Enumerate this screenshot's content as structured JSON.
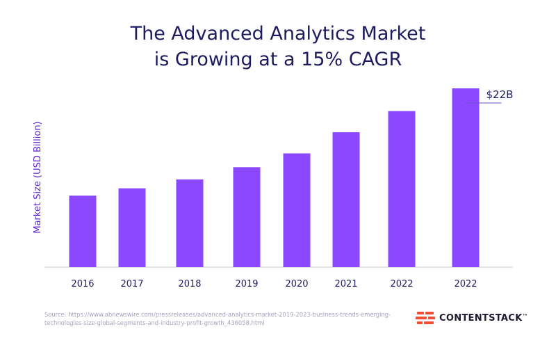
{
  "title": {
    "line1": "The Advanced Analytics Market",
    "line2": "is Growing at a 15% CAGR"
  },
  "chart_data": {
    "type": "bar",
    "title": "The Advanced Analytics Market is Growing at a 15% CAGR",
    "xlabel": "",
    "ylabel": "Market Size (USD Billion)",
    "categories": [
      "2016",
      "2017",
      "2018",
      "2019",
      "2020",
      "2021",
      "2022",
      "2022"
    ],
    "values": [
      8.8,
      9.7,
      10.8,
      12.3,
      14.0,
      16.6,
      19.2,
      22
    ],
    "ylim": [
      0,
      22
    ],
    "annotations": [
      {
        "index": 7,
        "text": "$22B"
      }
    ],
    "grid": false,
    "bar_color": "#8c48ff"
  },
  "source": "Source: https://www.abnewswire.com/pressreleases/advanced-analytics-market-2019-2023-business-trends-emerging-technologies-size-global-segments-and-industry-profit-growth_436058.html",
  "brand": {
    "name": "CONTENTSTACK",
    "trademark": "™",
    "logo_icon": "contentstack-logo-icon",
    "color": "#f04e37"
  }
}
